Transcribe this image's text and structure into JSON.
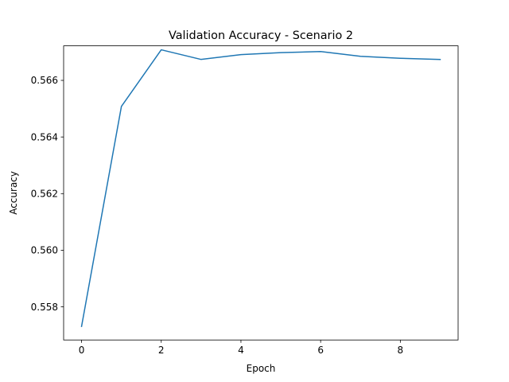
{
  "chart_data": {
    "type": "line",
    "title": "Validation Accuracy - Scenario 2",
    "xlabel": "Epoch",
    "ylabel": "Accuracy",
    "xlim": [
      -0.45,
      9.45
    ],
    "ylim": [
      0.55683,
      0.56722
    ],
    "xticks": [
      0,
      2,
      4,
      6,
      8
    ],
    "xtick_labels": [
      "0",
      "2",
      "4",
      "6",
      "8"
    ],
    "yticks": [
      0.558,
      0.56,
      0.562,
      0.564,
      0.566
    ],
    "ytick_labels": [
      "0.558",
      "0.560",
      "0.562",
      "0.564",
      "0.566"
    ],
    "grid": false,
    "series": [
      {
        "color": "#1f77b4",
        "x": [
          0,
          1,
          2,
          3,
          4,
          5,
          6,
          7,
          8,
          9
        ],
        "y": [
          0.55731,
          0.56508,
          0.56708,
          0.56674,
          0.56691,
          0.56698,
          0.56702,
          0.56685,
          0.56678,
          0.56674
        ]
      }
    ]
  }
}
